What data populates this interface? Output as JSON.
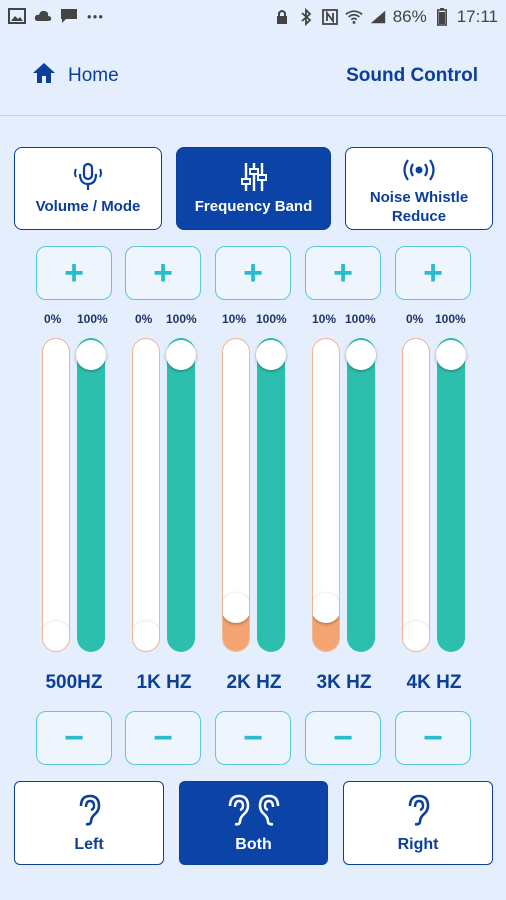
{
  "status_bar": {
    "battery": "86%",
    "time": "17:11",
    "left_icons": [
      "image-icon",
      "cloud-icon",
      "message-icon",
      "more-icon"
    ],
    "right_icons": [
      "lock-icon",
      "bluetooth-icon",
      "nfc-icon",
      "wifi-icon",
      "signal-icon"
    ]
  },
  "header": {
    "home_label": "Home",
    "title": "Sound Control"
  },
  "mode_tabs": [
    {
      "label": "Volume / Mode",
      "icon": "microphone-icon",
      "active": false
    },
    {
      "label": "Frequency Band",
      "icon": "sliders-icon",
      "active": true
    },
    {
      "label": "Noise Whistle Reduce",
      "icon": "broadcast-icon",
      "active": false
    }
  ],
  "plus_label": "+",
  "minus_label": "−",
  "bands": [
    {
      "label": "500HZ",
      "left_pct_label": "0%",
      "right_pct_label": "100%",
      "left_value": 0,
      "right_value": 100
    },
    {
      "label": "1K HZ",
      "left_pct_label": "0%",
      "right_pct_label": "100%",
      "left_value": 0,
      "right_value": 100
    },
    {
      "label": "2K HZ",
      "left_pct_label": "10%",
      "right_pct_label": "100%",
      "left_value": 10,
      "right_value": 100
    },
    {
      "label": "3K HZ",
      "left_pct_label": "10%",
      "right_pct_label": "100%",
      "left_value": 10,
      "right_value": 100
    },
    {
      "label": "4K HZ",
      "left_pct_label": "0%",
      "right_pct_label": "100%",
      "left_value": 0,
      "right_value": 100
    }
  ],
  "ear_buttons": [
    {
      "label": "Left",
      "icon": "ear-icon",
      "active": false
    },
    {
      "label": "Both",
      "icon": "both-ears-icon",
      "active": true
    },
    {
      "label": "Right",
      "icon": "ear-icon",
      "active": false
    }
  ],
  "colors": {
    "accent": "#0b43a6",
    "teal": "#2dbfae",
    "orange": "#f3a470",
    "background": "#e5eefc"
  }
}
